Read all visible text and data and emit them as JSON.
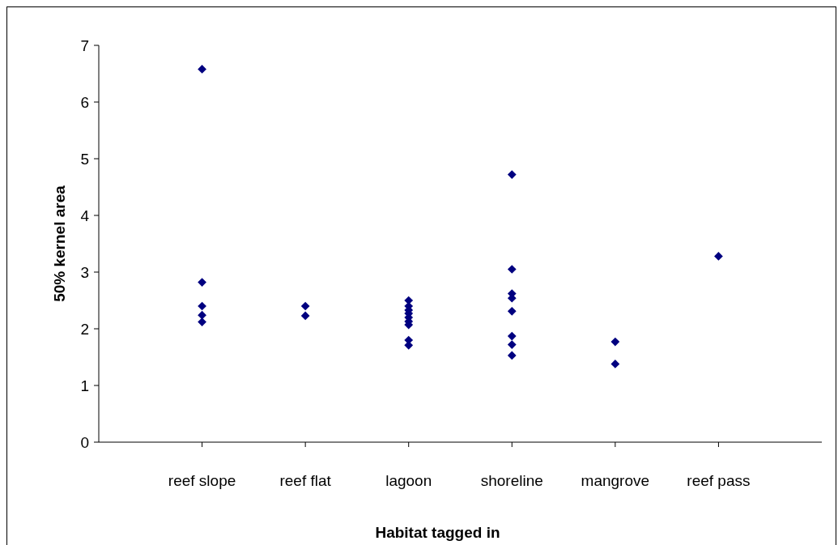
{
  "chart_data": {
    "type": "scatter",
    "xlabel": "Habitat tagged in",
    "ylabel": "50% kernel area",
    "categories": [
      "reef slope",
      "reef flat",
      "lagoon",
      "shoreline",
      "mangrove",
      "reef pass"
    ],
    "ylim": [
      0,
      7
    ],
    "yticks": [
      0,
      1,
      2,
      3,
      4,
      5,
      6,
      7
    ],
    "grid": false,
    "marker": "diamond",
    "series": [
      {
        "color": "#000080",
        "x": [
          "reef slope",
          "reef slope",
          "reef slope",
          "reef slope",
          "reef slope",
          "reef flat",
          "reef flat",
          "lagoon",
          "lagoon",
          "lagoon",
          "lagoon",
          "lagoon",
          "lagoon",
          "lagoon",
          "lagoon",
          "lagoon",
          "shoreline",
          "shoreline",
          "shoreline",
          "shoreline",
          "shoreline",
          "shoreline",
          "shoreline",
          "shoreline",
          "mangrove",
          "mangrove",
          "reef pass"
        ],
        "values": [
          6.58,
          2.82,
          2.4,
          2.24,
          2.12,
          2.4,
          2.23,
          2.5,
          2.4,
          2.33,
          2.27,
          2.2,
          2.13,
          2.07,
          1.8,
          1.71,
          4.72,
          3.05,
          2.62,
          2.54,
          2.31,
          1.87,
          1.72,
          1.53,
          1.77,
          1.38,
          3.28
        ]
      }
    ]
  }
}
